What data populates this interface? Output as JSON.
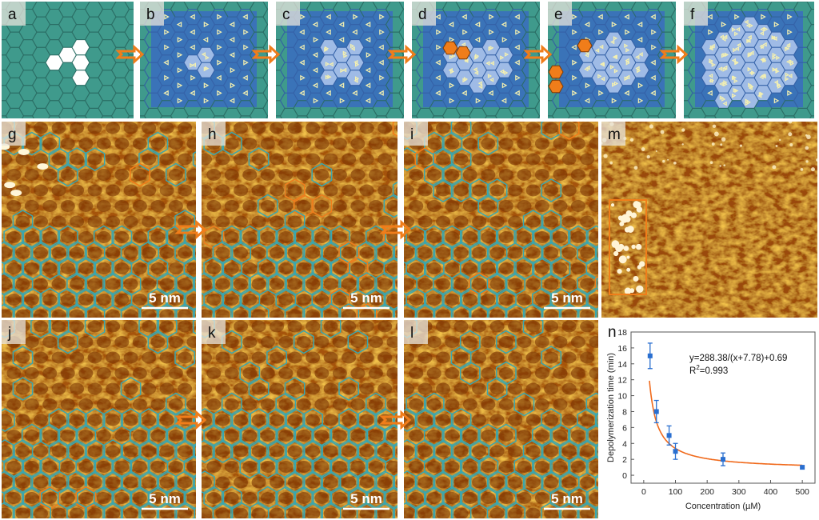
{
  "panels": {
    "a": "a",
    "b": "b",
    "c": "c",
    "d": "d",
    "e": "e",
    "f": "f",
    "g": "g",
    "h": "h",
    "i": "i",
    "m": "m",
    "j": "j",
    "k": "k",
    "l": "l",
    "n": "n"
  },
  "scale_bar": "5 nm",
  "colors": {
    "lattice_teal": "#3f9a8c",
    "lattice_line": "#2b6e65",
    "overlay_blue": "#3a6cc0",
    "light_region": "#9fbbe6",
    "arrow_orange": "#f07d1a",
    "stm_hex": "#3aa6ae",
    "fit_curve": "#f06a1c",
    "points": "#2a6fd0"
  },
  "chart_data": {
    "type": "scatter",
    "title": "",
    "xlabel": "Concentration (µM)",
    "ylabel": "Depolymerization time (min)",
    "xlim": [
      -40,
      540
    ],
    "ylim": [
      -1,
      18
    ],
    "xticks": [
      "0",
      "100",
      "200",
      "300",
      "400",
      "500"
    ],
    "yticks": [
      "0",
      "2",
      "4",
      "6",
      "8",
      "10",
      "12",
      "14",
      "16",
      "18"
    ],
    "x": [
      20,
      40,
      80,
      100,
      250,
      500
    ],
    "y": [
      15,
      8,
      5,
      3,
      2,
      1
    ],
    "yerr": [
      1.6,
      1.4,
      1.2,
      1.0,
      0.8,
      0
    ],
    "fit": {
      "a": 288.38,
      "b": 7.78,
      "c": 0.69
    },
    "equation": "y=288.38/(x+7.78)+0.69",
    "r2_label": "R",
    "r2_sup": "2",
    "r2_value": "=0.993",
    "grid": false
  }
}
